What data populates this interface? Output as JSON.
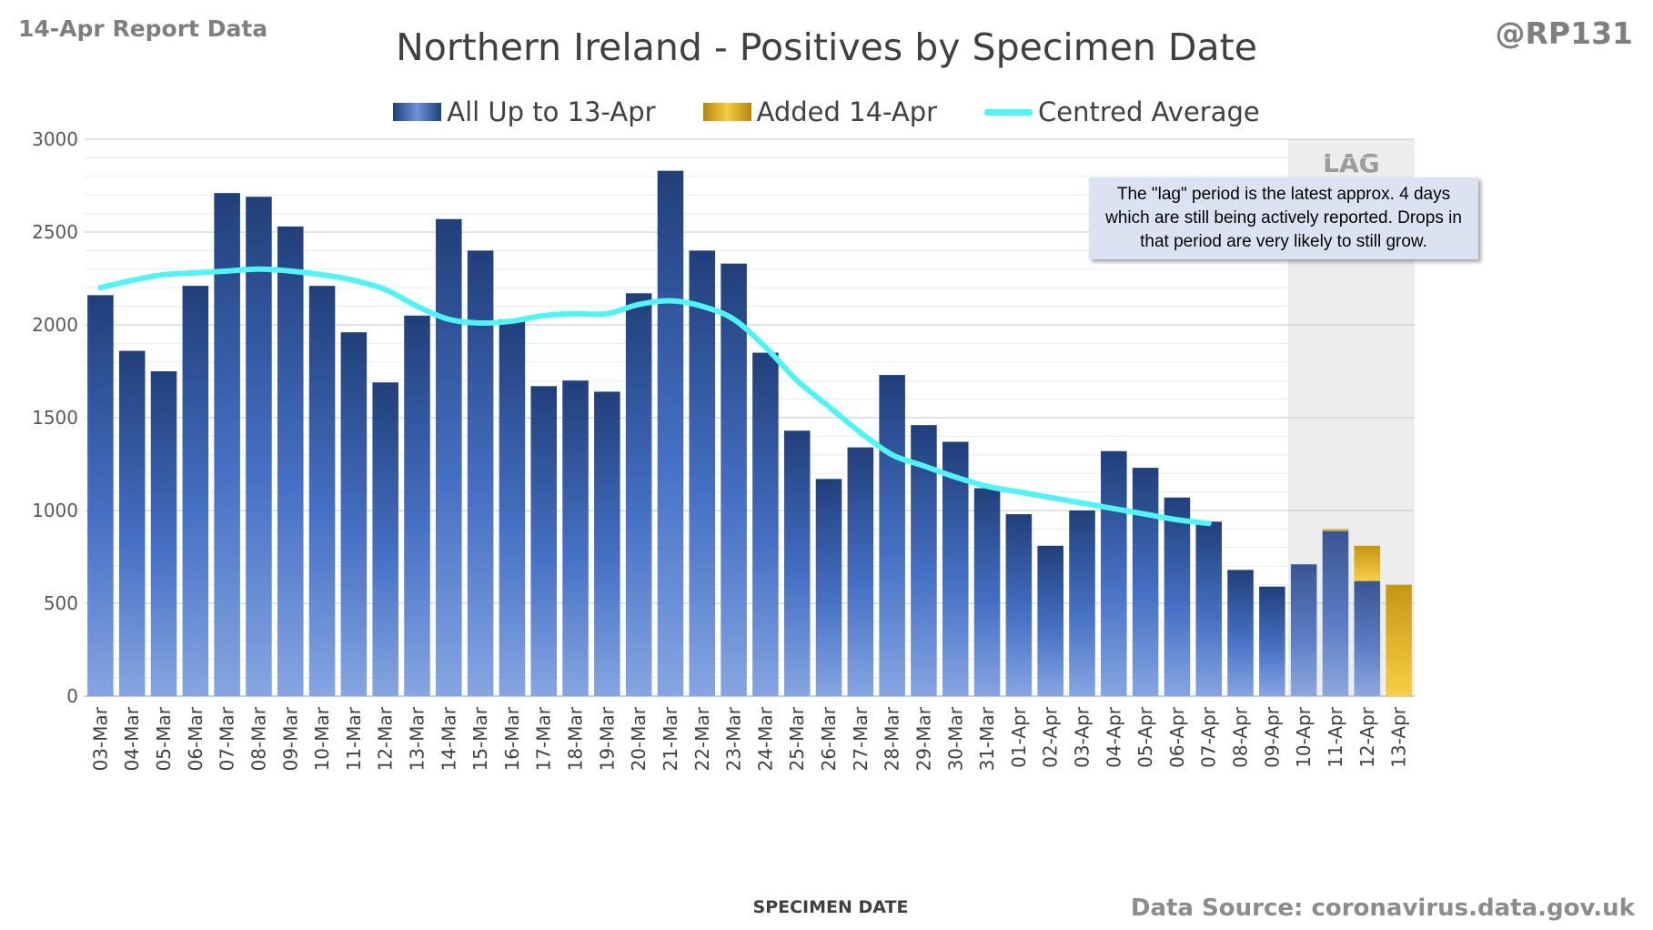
{
  "header": {
    "report_label": "14-Apr Report Data",
    "handle": "@RP131",
    "title": "Northern Ireland - Positives by Specimen Date"
  },
  "legend": {
    "items": [
      {
        "label": "All Up to 13-Apr",
        "kind": "bar",
        "color": "#3b64b4"
      },
      {
        "label": "Added 14-Apr",
        "kind": "bar",
        "color": "#e8b21a"
      },
      {
        "label": "Centred Average",
        "kind": "line",
        "color": "#4ff4f4"
      }
    ]
  },
  "note": {
    "text": "The \"lag\" period is the latest approx. 4 days which are still being actively reported. Drops in that period are very likely to still grow."
  },
  "lag_label": "LAG",
  "footer": {
    "xlabel": "SPECIMEN DATE",
    "source": "Data Source: coronavirus.data.gov.uk"
  },
  "chart_data": {
    "type": "bar",
    "stacked": true,
    "title": "Northern Ireland - Positives by Specimen Date",
    "xlabel": "SPECIMEN DATE",
    "ylabel": "",
    "ylim": [
      0,
      3000
    ],
    "yticks": [
      0,
      500,
      1000,
      1500,
      2000,
      2500,
      3000
    ],
    "grid": true,
    "legend_position": "top",
    "lag_categories": [
      "10-Apr",
      "11-Apr",
      "12-Apr",
      "13-Apr"
    ],
    "categories": [
      "03-Mar",
      "04-Mar",
      "05-Mar",
      "06-Mar",
      "07-Mar",
      "08-Mar",
      "09-Mar",
      "10-Mar",
      "11-Mar",
      "12-Mar",
      "13-Mar",
      "14-Mar",
      "15-Mar",
      "16-Mar",
      "17-Mar",
      "18-Mar",
      "19-Mar",
      "20-Mar",
      "21-Mar",
      "22-Mar",
      "23-Mar",
      "24-Mar",
      "25-Mar",
      "26-Mar",
      "27-Mar",
      "28-Mar",
      "29-Mar",
      "30-Mar",
      "31-Mar",
      "01-Apr",
      "02-Apr",
      "03-Apr",
      "04-Apr",
      "05-Apr",
      "06-Apr",
      "07-Apr",
      "08-Apr",
      "09-Apr",
      "10-Apr",
      "11-Apr",
      "12-Apr",
      "13-Apr"
    ],
    "series": [
      {
        "name": "All Up to 13-Apr",
        "type": "bar",
        "color": "#3b64b4",
        "values": [
          2160,
          1860,
          1750,
          2210,
          2710,
          2690,
          2530,
          2210,
          1960,
          1690,
          2050,
          2570,
          2400,
          2030,
          1670,
          1700,
          1640,
          2170,
          2830,
          2400,
          2330,
          1850,
          1430,
          1170,
          1340,
          1730,
          1460,
          1370,
          1120,
          980,
          810,
          1000,
          1320,
          1230,
          1070,
          940,
          680,
          590,
          710,
          890,
          620,
          0
        ]
      },
      {
        "name": "Added 14-Apr",
        "type": "bar",
        "color": "#e8b21a",
        "values": [
          0,
          0,
          0,
          0,
          0,
          0,
          0,
          0,
          0,
          0,
          0,
          0,
          0,
          0,
          0,
          0,
          0,
          0,
          0,
          0,
          0,
          0,
          0,
          0,
          0,
          0,
          0,
          0,
          0,
          0,
          0,
          0,
          0,
          0,
          0,
          0,
          0,
          0,
          0,
          10,
          190,
          600
        ]
      },
      {
        "name": "Centred Average",
        "type": "line",
        "color": "#4ff4f4",
        "values": [
          2200,
          2240,
          2270,
          2280,
          2290,
          2300,
          2290,
          2270,
          2240,
          2190,
          2100,
          2030,
          2010,
          2020,
          2050,
          2060,
          2060,
          2110,
          2130,
          2100,
          2030,
          1880,
          1700,
          1560,
          1420,
          1300,
          1240,
          1180,
          1130,
          1100,
          1070,
          1040,
          1010,
          980,
          950,
          930,
          null,
          null,
          null,
          null,
          null,
          null
        ]
      }
    ]
  }
}
